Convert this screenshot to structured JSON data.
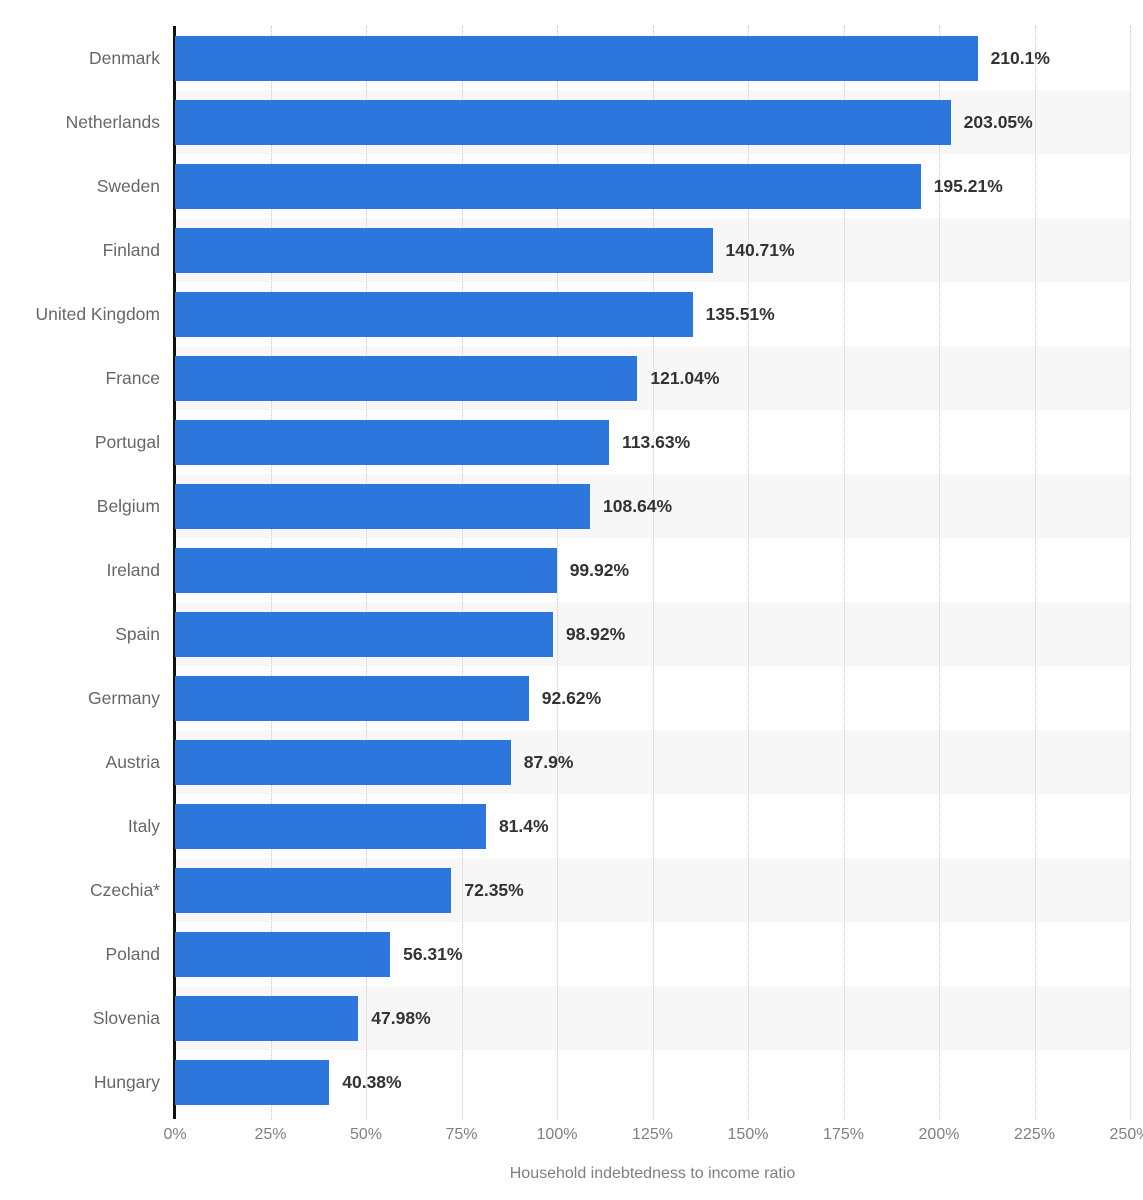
{
  "chart_data": {
    "type": "bar",
    "orientation": "horizontal",
    "categories": [
      "Denmark",
      "Netherlands",
      "Sweden",
      "Finland",
      "United Kingdom",
      "France",
      "Portugal",
      "Belgium",
      "Ireland",
      "Spain",
      "Germany",
      "Austria",
      "Italy",
      "Czechia*",
      "Poland",
      "Slovenia",
      "Hungary"
    ],
    "values": [
      210.1,
      203.05,
      195.21,
      140.71,
      135.51,
      121.04,
      113.63,
      108.64,
      99.92,
      98.92,
      92.62,
      87.9,
      81.4,
      72.35,
      56.31,
      47.98,
      40.38
    ],
    "value_labels": [
      "210.1%",
      "203.05%",
      "195.21%",
      "140.71%",
      "135.51%",
      "121.04%",
      "113.63%",
      "108.64%",
      "99.92%",
      "98.92%",
      "92.62%",
      "87.9%",
      "81.4%",
      "72.35%",
      "56.31%",
      "47.98%",
      "40.38%"
    ],
    "title": "",
    "xlabel": "Household indebtedness to income ratio",
    "ylabel": "",
    "x_ticks": [
      "0%",
      "25%",
      "50%",
      "75%",
      "100%",
      "125%",
      "150%",
      "175%",
      "200%",
      "225%",
      "250%"
    ],
    "xlim": [
      0,
      250
    ],
    "grid": "vertical-dotted",
    "legend": "none",
    "bar_color": "#2d76dc",
    "stripe_color": "#f7f7f7",
    "axis_line_color": "#111111",
    "value_label_color": "#333333",
    "category_label_color": "#676767",
    "tick_label_color": "#7f7f7f"
  }
}
